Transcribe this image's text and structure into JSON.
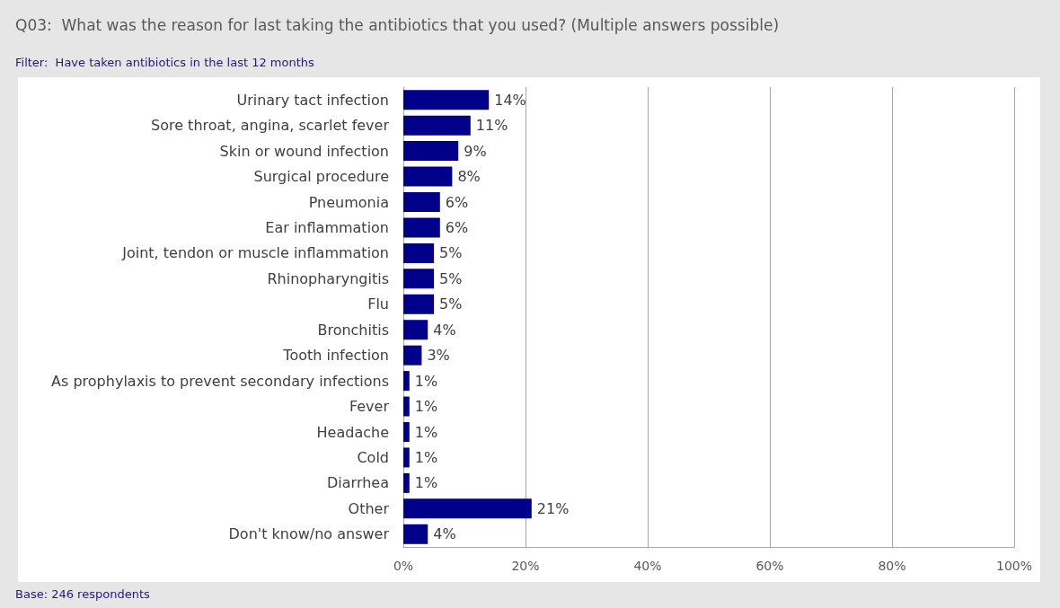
{
  "chart_data": {
    "type": "bar",
    "orientation": "horizontal",
    "title": "Q03:  What was the reason for last taking the antibiotics that you used? (Multiple answers possible)",
    "subtitle": "Filter:  Have taken antibiotics in the last 12 months",
    "annotations": [
      "Base: 246 respondents"
    ],
    "categories": [
      "Urinary tact infection",
      "Sore throat, angina, scarlet fever",
      "Skin or wound infection",
      "Surgical procedure",
      "Pneumonia",
      "Ear inflammation",
      "Joint, tendon or muscle inflammation",
      "Rhinopharyngitis",
      "Flu",
      "Bronchitis",
      "Tooth infection",
      "As prophylaxis to prevent secondary infections",
      "Fever",
      "Headache",
      "Cold",
      "Diarrhea",
      "Other",
      "Don't know/no answer"
    ],
    "values": [
      14,
      11,
      9,
      8,
      6,
      6,
      5,
      5,
      5,
      4,
      3,
      1,
      1,
      1,
      1,
      1,
      21,
      4
    ],
    "value_labels": [
      "14%",
      "11%",
      "9%",
      "8%",
      "6%",
      "6%",
      "5%",
      "5%",
      "5%",
      "4%",
      "3%",
      "1%",
      "1%",
      "1%",
      "1%",
      "1%",
      "21%",
      "4%"
    ],
    "color": "#00008b",
    "xlim": [
      0,
      100
    ],
    "xticks": [
      {
        "value": 0,
        "label": "0%"
      },
      {
        "value": 20,
        "label": "20%"
      },
      {
        "value": 40,
        "label": "40%"
      },
      {
        "value": 60,
        "label": "60%"
      },
      {
        "value": 80,
        "label": "80%"
      },
      {
        "value": 100,
        "label": "100%"
      }
    ],
    "grid": "x"
  }
}
